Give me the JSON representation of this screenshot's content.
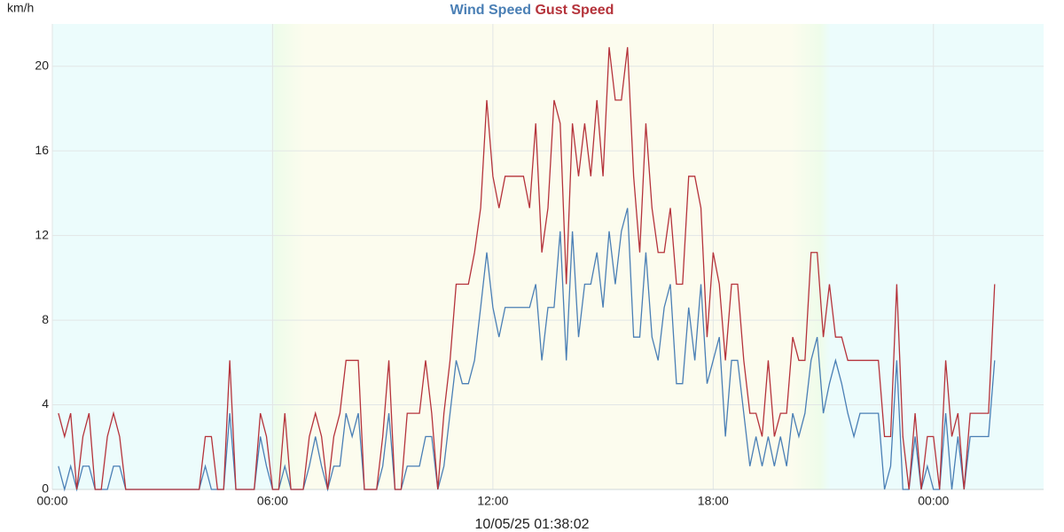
{
  "chart_data": {
    "type": "line",
    "ylabel": "km/h",
    "caption": "10/05/25 01:38:02",
    "x": [
      10,
      20,
      30,
      40,
      50,
      60,
      70,
      80,
      90,
      100,
      110,
      120,
      130,
      140,
      150,
      160,
      170,
      180,
      190,
      200,
      210,
      220,
      230,
      240,
      250,
      260,
      270,
      280,
      290,
      300,
      310,
      320,
      330,
      340,
      350,
      360,
      370,
      380,
      390,
      400,
      410,
      420,
      430,
      440,
      450,
      460,
      470,
      480,
      490,
      500,
      510,
      520,
      530,
      540,
      550,
      560,
      570,
      580,
      590,
      600,
      610,
      620,
      630,
      640,
      650,
      660,
      670,
      680,
      690,
      700,
      710,
      720,
      730,
      740,
      750,
      760,
      770,
      780,
      790,
      800,
      810,
      820,
      830,
      840,
      850,
      860,
      870,
      880,
      890,
      900,
      910,
      920,
      930,
      940,
      950,
      960,
      970,
      980,
      990,
      1000,
      1010,
      1020,
      1030,
      1040,
      1050,
      1060,
      1070,
      1080,
      1090,
      1100,
      1110,
      1120,
      1130,
      1140,
      1150,
      1160,
      1170,
      1180,
      1190,
      1200,
      1210,
      1220,
      1230,
      1240,
      1250,
      1260,
      1270,
      1280,
      1290,
      1300,
      1310,
      1320,
      1330,
      1340,
      1350,
      1360,
      1370,
      1380,
      1390,
      1400,
      1410,
      1420,
      1430,
      1440,
      1450,
      1460,
      1470,
      1480,
      1490,
      1500,
      1510,
      1520,
      1530,
      1540
    ],
    "series": [
      {
        "name": "Wind Speed",
        "color": "#4a7fb5",
        "values": [
          1.1,
          0,
          1.1,
          0,
          1.1,
          1.1,
          0,
          0,
          0,
          1.1,
          1.1,
          0,
          0,
          0,
          0,
          0,
          0,
          0,
          0,
          0,
          0,
          0,
          0,
          0,
          1.1,
          0,
          0,
          0,
          3.6,
          0,
          0,
          0,
          0,
          2.5,
          1.1,
          0,
          0,
          1.1,
          0,
          0,
          0,
          1.1,
          2.5,
          1.1,
          0,
          1.1,
          1.1,
          3.6,
          2.5,
          3.6,
          0,
          0,
          0,
          1.1,
          3.6,
          0,
          0,
          1.1,
          1.1,
          1.1,
          2.5,
          2.5,
          0,
          1.1,
          3.6,
          6.1,
          5,
          5,
          6.1,
          8.6,
          11.2,
          8.6,
          7.2,
          8.6,
          8.6,
          8.6,
          8.6,
          8.6,
          9.7,
          6.1,
          8.6,
          8.6,
          12.2,
          6.1,
          12.2,
          7.2,
          9.7,
          9.7,
          11.2,
          8.6,
          12.2,
          9.7,
          12.2,
          13.3,
          7.2,
          7.2,
          11.2,
          7.2,
          6.1,
          8.6,
          9.7,
          5,
          5,
          8.6,
          6.1,
          9.7,
          5,
          6.1,
          7.2,
          2.5,
          6.1,
          6.1,
          3.6,
          1.1,
          2.5,
          1.1,
          2.5,
          1.1,
          2.5,
          1.1,
          3.6,
          2.5,
          3.6,
          6.1,
          7.2,
          3.6,
          5,
          6.1,
          5,
          3.6,
          2.5,
          3.6,
          3.6,
          3.6,
          3.6,
          0,
          1.1,
          6.1,
          0,
          0,
          2.5,
          0,
          1.1,
          0,
          0,
          3.6,
          0,
          2.5,
          0,
          2.5,
          2.5,
          2.5,
          2.5,
          6.1
        ]
      },
      {
        "name": "Gust Speed",
        "color": "#b5333b",
        "values": [
          3.6,
          2.5,
          3.6,
          0,
          2.5,
          3.6,
          0,
          0,
          2.5,
          3.6,
          2.5,
          0,
          0,
          0,
          0,
          0,
          0,
          0,
          0,
          0,
          0,
          0,
          0,
          0,
          2.5,
          2.5,
          0,
          0,
          6.1,
          0,
          0,
          0,
          0,
          3.6,
          2.5,
          0,
          0,
          3.6,
          0,
          0,
          0,
          2.5,
          3.6,
          2.5,
          0,
          2.5,
          3.6,
          6.1,
          6.1,
          6.1,
          0,
          0,
          0,
          2.5,
          6.1,
          0,
          0,
          3.6,
          3.6,
          3.6,
          6.1,
          3.6,
          0,
          3.6,
          6.1,
          9.7,
          9.7,
          9.7,
          11.2,
          13.3,
          18.4,
          14.8,
          13.3,
          14.8,
          14.8,
          14.8,
          14.8,
          13.3,
          17.3,
          11.2,
          13.3,
          18.4,
          17.3,
          9.7,
          17.3,
          14.8,
          17.3,
          14.8,
          18.4,
          14.8,
          20.9,
          18.4,
          18.4,
          20.9,
          14.8,
          11.2,
          17.3,
          13.3,
          11.2,
          11.2,
          13.3,
          9.7,
          9.7,
          14.8,
          14.8,
          13.3,
          7.2,
          11.2,
          9.7,
          6.1,
          9.7,
          9.7,
          6.1,
          3.6,
          3.6,
          2.5,
          6.1,
          2.5,
          3.6,
          3.6,
          7.2,
          6.1,
          6.1,
          11.2,
          11.2,
          7.2,
          9.7,
          7.2,
          7.2,
          6.1,
          6.1,
          6.1,
          6.1,
          6.1,
          6.1,
          2.5,
          2.5,
          9.7,
          2.5,
          0,
          3.6,
          0,
          2.5,
          2.5,
          0,
          6.1,
          2.5,
          3.6,
          0,
          3.6,
          3.6,
          3.6,
          3.6,
          9.7
        ]
      }
    ],
    "xlim": [
      0,
      1620
    ],
    "xticks": [
      {
        "value": 0,
        "label": "00:00"
      },
      {
        "value": 360,
        "label": "06:00"
      },
      {
        "value": 720,
        "label": "12:00"
      },
      {
        "value": 1080,
        "label": "18:00"
      },
      {
        "value": 1440,
        "label": "00:00"
      }
    ],
    "ylim": [
      0,
      22
    ],
    "yticks": [
      0,
      4,
      8,
      12,
      16,
      20
    ],
    "grid": true
  }
}
